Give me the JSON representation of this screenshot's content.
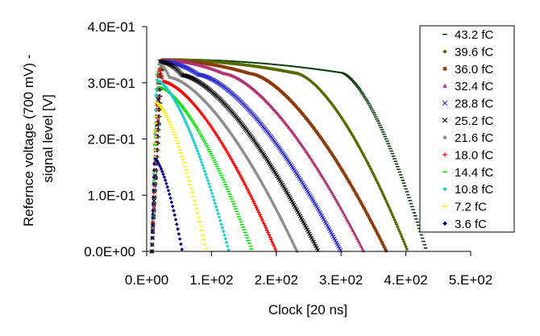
{
  "chart_data": {
    "type": "scatter",
    "title": "",
    "xlabel": "Clock [20 ns]",
    "ylabel_lines": [
      "Refernce voltage (700 mV) -",
      "signal level [V]"
    ],
    "xlim": [
      0,
      500
    ],
    "ylim": [
      0,
      0.4
    ],
    "x_ticks": [
      0,
      100,
      200,
      300,
      400,
      500
    ],
    "x_tick_labels": [
      "0.E+00",
      "1.E+02",
      "2.E+02",
      "3.E+02",
      "4.E+02",
      "5.E+02"
    ],
    "y_ticks": [
      0,
      0.1,
      0.2,
      0.3,
      0.4
    ],
    "y_tick_labels": [
      "0.0E+00",
      "1.0E-01",
      "2.0E-01",
      "3.0E-01",
      "4.0E-01"
    ],
    "grid": false,
    "legend_position": "right",
    "series": [
      {
        "name": "43.2 fC",
        "color": "#0b3d0b",
        "marker": "dash",
        "peak_x": 25,
        "peak_y": 0.342,
        "plateau_end_x": 300,
        "end_x": 432
      },
      {
        "name": "39.6 fC",
        "color": "#556b00",
        "marker": "diamond",
        "peak_x": 23,
        "peak_y": 0.341,
        "plateau_end_x": 230,
        "end_x": 403
      },
      {
        "name": "36.0 fC",
        "color": "#8b3a0a",
        "marker": "square",
        "peak_x": 22,
        "peak_y": 0.34,
        "plateau_end_x": 160,
        "end_x": 370
      },
      {
        "name": "32.4 fC",
        "color": "#b03070",
        "marker": "triangle",
        "peak_x": 22,
        "peak_y": 0.34,
        "plateau_end_x": 120,
        "end_x": 335
      },
      {
        "name": "28.8 fC",
        "color": "#2b2bcf",
        "marker": "x",
        "peak_x": 20,
        "peak_y": 0.338,
        "plateau_end_x": 80,
        "end_x": 300
      },
      {
        "name": "25.2 fC",
        "color": "#000000",
        "marker": "x",
        "peak_x": 20,
        "peak_y": 0.337,
        "plateau_end_x": 55,
        "end_x": 265
      },
      {
        "name": "21.6 fC",
        "color": "#8c8c8c",
        "marker": "circle",
        "peak_x": 18,
        "peak_y": 0.333,
        "plateau_end_x": 35,
        "end_x": 232
      },
      {
        "name": "18.0 fC",
        "color": "#ff0000",
        "marker": "plus",
        "peak_x": 18,
        "peak_y": 0.325,
        "plateau_end_x": 25,
        "end_x": 200
      },
      {
        "name": "14.4 fC",
        "color": "#00dd00",
        "marker": "dash",
        "peak_x": 16,
        "peak_y": 0.315,
        "plateau_end_x": 18,
        "end_x": 163
      },
      {
        "name": "10.8 fC",
        "color": "#22cccc",
        "marker": "diamond",
        "peak_x": 15,
        "peak_y": 0.305,
        "plateau_end_x": 15,
        "end_x": 127
      },
      {
        "name": "7.2 fC",
        "color": "#ffee00",
        "marker": "dash",
        "peak_x": 14,
        "peak_y": 0.265,
        "plateau_end_x": 14,
        "end_x": 92
      },
      {
        "name": "3.6 fC",
        "color": "#000080",
        "marker": "diamond",
        "peak_x": 12,
        "peak_y": 0.165,
        "plateau_end_x": 12,
        "end_x": 55
      }
    ]
  }
}
